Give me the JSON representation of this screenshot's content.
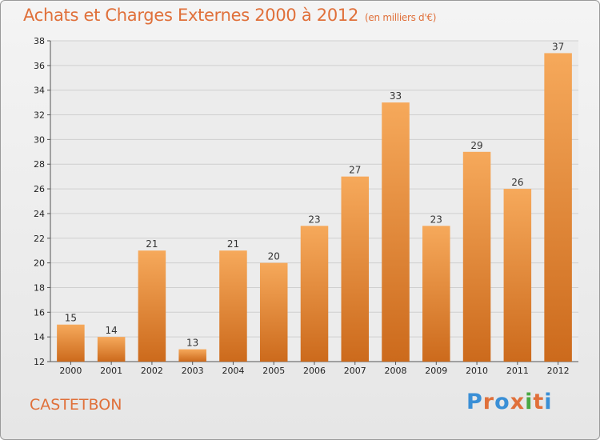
{
  "title": "Achats et Charges Externes 2000 à 2012",
  "subtitle": "(en milliers d'€)",
  "town": "CASTETBON",
  "brand": {
    "text": "Proxiti",
    "letter_colors": [
      "#3a8fd6",
      "#e0703a",
      "#3a8fd6",
      "#e0703a",
      "#4aa843",
      "#e0703a",
      "#3a8fd6"
    ]
  },
  "colors": {
    "bar_light": "#f6a95b",
    "bar_dark": "#cc6a1c",
    "grid": "#cfcfcf",
    "accent": "#e0703a"
  },
  "chart_data": {
    "type": "bar",
    "title": "Achats et Charges Externes 2000 à 2012",
    "subtitle": "(en milliers d'€)",
    "categories": [
      "2000",
      "2001",
      "2002",
      "2003",
      "2004",
      "2005",
      "2006",
      "2007",
      "2008",
      "2009",
      "2010",
      "2011",
      "2012"
    ],
    "values": [
      15,
      14,
      21,
      13,
      21,
      20,
      23,
      27,
      33,
      23,
      29,
      26,
      37
    ],
    "ylim": [
      12,
      38
    ],
    "yticks": [
      12,
      14,
      16,
      18,
      20,
      22,
      24,
      26,
      28,
      30,
      32,
      34,
      36,
      38
    ],
    "grid": true,
    "data_labels": true
  }
}
